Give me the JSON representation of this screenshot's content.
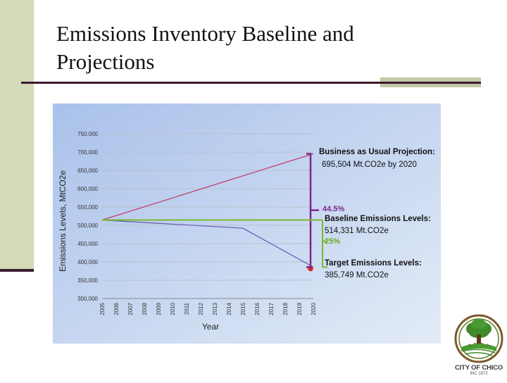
{
  "slide": {
    "title": "Emissions Inventory Baseline and Projections"
  },
  "logo": {
    "text": "CITY OF CHICO",
    "subtext": "INC 1872"
  },
  "chart_data": {
    "type": "line",
    "xlabel": "Year",
    "ylabel": "Emissions Levels, MtCO2e",
    "ylim": [
      300000,
      750000
    ],
    "yticks": [
      "300,000",
      "350,000",
      "400,000",
      "450,000",
      "500,000",
      "550,000",
      "600,000",
      "650,000",
      "700,000",
      "750,000"
    ],
    "ytick_values": [
      300000,
      350000,
      400000,
      450000,
      500000,
      550000,
      600000,
      650000,
      700000,
      750000
    ],
    "categories": [
      "2005",
      "2006",
      "2007",
      "2008",
      "2009",
      "2010",
      "2011",
      "2012",
      "2013",
      "2014",
      "2015",
      "2016",
      "2017",
      "2018",
      "2019",
      "2020"
    ],
    "grid": true,
    "series": [
      {
        "x": [
          "2005",
          "2020"
        ],
        "values": [
          514331,
          695504
        ],
        "color": "#c0406e"
      },
      {
        "x": [
          "2005",
          "2015",
          "2020"
        ],
        "values": [
          514331,
          492000,
          385749
        ],
        "color": "#6a63b5"
      }
    ],
    "target_point": {
      "x": "2020",
      "y": 385749,
      "color": "#e02020"
    },
    "annotations": {
      "bau_title": "Business as Usual Projection:",
      "bau_value": "695,504 Mt.CO2e by 2020",
      "pct_bau": "44.5%",
      "baseline_title": "Baseline Emissions Levels:",
      "baseline_value": "514,331 Mt.CO2e",
      "pct_baseline": "25%",
      "target_title": "Target Emissions Levels:",
      "target_value": "385,749 Mt.CO2e"
    },
    "colors": {
      "bracket_purple": "#7a2a8a",
      "bracket_green": "#7ab82e",
      "pct_purple": "#7a2a8a",
      "pct_green": "#6aaa1e"
    }
  }
}
